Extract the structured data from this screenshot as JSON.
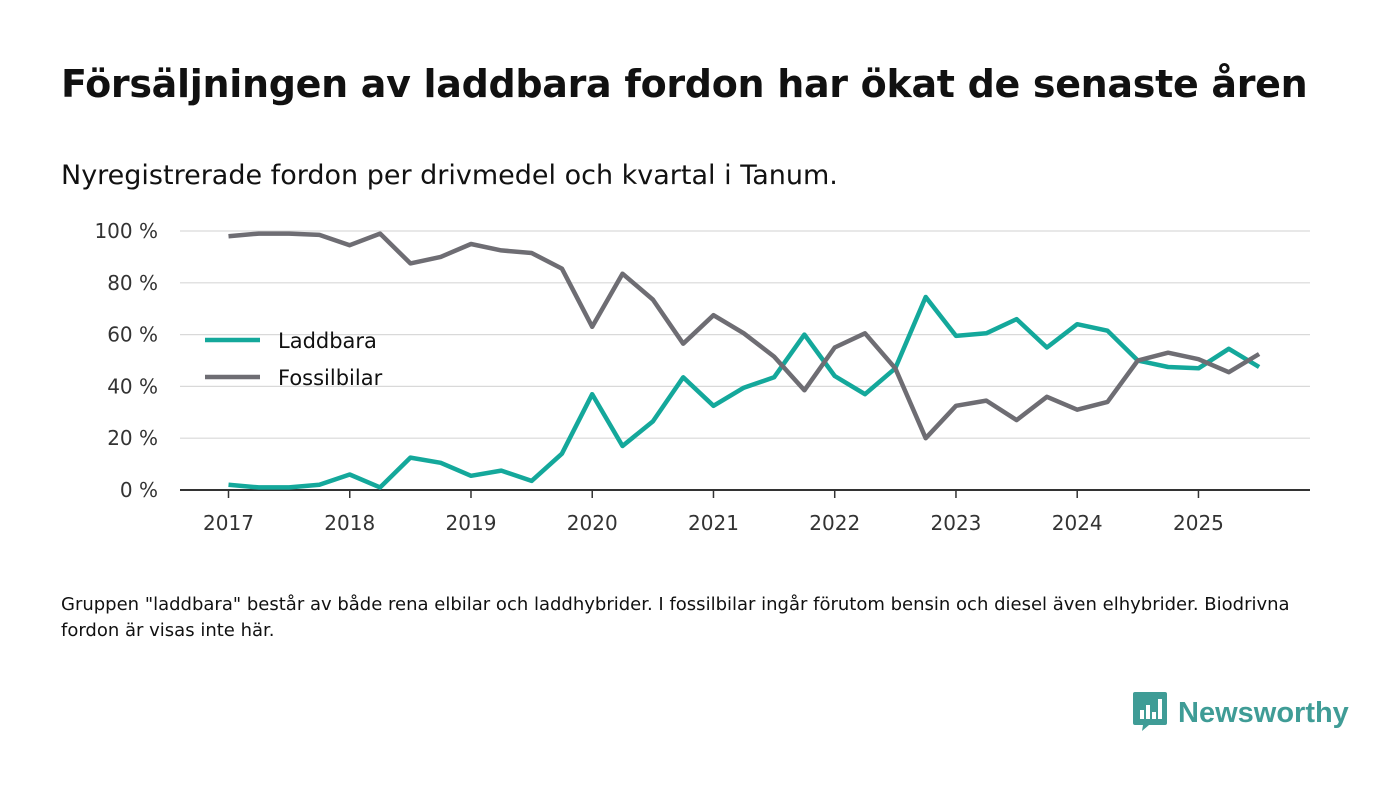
{
  "title": "Försäljningen av laddbara fordon har ökat de senaste åren",
  "subtitle": "Nyregistrerade fordon per drivmedel och kvartal i Tanum.",
  "footnote": "Gruppen \"laddbara\" består av både rena elbilar och laddhybrider. I fossilbilar ingår förutom bensin och diesel även elhybrider. Biodrivna fordon är visas inte här.",
  "brand": {
    "name": "Newsworthy",
    "icon": "newsworthy-logo-icon",
    "color": "#3f9c96"
  },
  "chart_data": {
    "type": "line",
    "title": "Försäljningen av laddbara fordon har ökat de senaste åren",
    "subtitle": "Nyregistrerade fordon per drivmedel och kvartal i Tanum.",
    "xlabel": "",
    "ylabel": "",
    "x": [
      2017.0,
      2017.25,
      2017.5,
      2017.75,
      2018.0,
      2018.25,
      2018.5,
      2018.75,
      2019.0,
      2019.25,
      2019.5,
      2019.75,
      2020.0,
      2020.25,
      2020.5,
      2020.75,
      2021.0,
      2021.25,
      2021.5,
      2021.75,
      2022.0,
      2022.25,
      2022.5,
      2022.75,
      2023.0,
      2023.25,
      2023.5,
      2023.75,
      2024.0,
      2024.25,
      2024.5,
      2024.75,
      2025.0,
      2025.25,
      2025.5
    ],
    "xlim": [
      2016.6,
      2025.92
    ],
    "ylim": [
      0,
      100
    ],
    "x_ticks": [
      2017,
      2018,
      2019,
      2020,
      2021,
      2022,
      2023,
      2024,
      2025
    ],
    "x_tick_labels": [
      "2017",
      "2018",
      "2019",
      "2020",
      "2021",
      "2022",
      "2023",
      "2024",
      "2025"
    ],
    "y_ticks": [
      0,
      20,
      40,
      60,
      80,
      100
    ],
    "y_tick_labels": [
      "0 %",
      "20 %",
      "40 %",
      "60 %",
      "80 %",
      "100 %"
    ],
    "grid": true,
    "legend_position": "left",
    "series": [
      {
        "name": "Laddbara",
        "color": "#14a89b",
        "values": [
          2,
          1,
          1,
          2,
          6,
          1,
          12.5,
          10.5,
          5.5,
          7.5,
          3.5,
          14,
          37,
          17,
          26.5,
          43.5,
          32.5,
          39.5,
          43.5,
          60,
          44,
          37,
          47,
          74.5,
          59.5,
          60.5,
          66,
          55,
          64,
          61.5,
          50,
          47.5,
          47,
          54.5,
          47.5
        ]
      },
      {
        "name": "Fossilbilar",
        "color": "#6e6d73",
        "values": [
          98,
          99,
          99,
          98.5,
          94.5,
          99,
          87.5,
          90,
          95,
          92.5,
          91.5,
          85.5,
          63,
          83.5,
          73.5,
          56.5,
          67.5,
          60.5,
          51.5,
          38.5,
          55,
          60.5,
          47,
          20,
          32.5,
          34.5,
          27,
          36,
          31,
          34,
          50,
          53,
          50.5,
          45.5,
          52.5
        ]
      }
    ]
  }
}
